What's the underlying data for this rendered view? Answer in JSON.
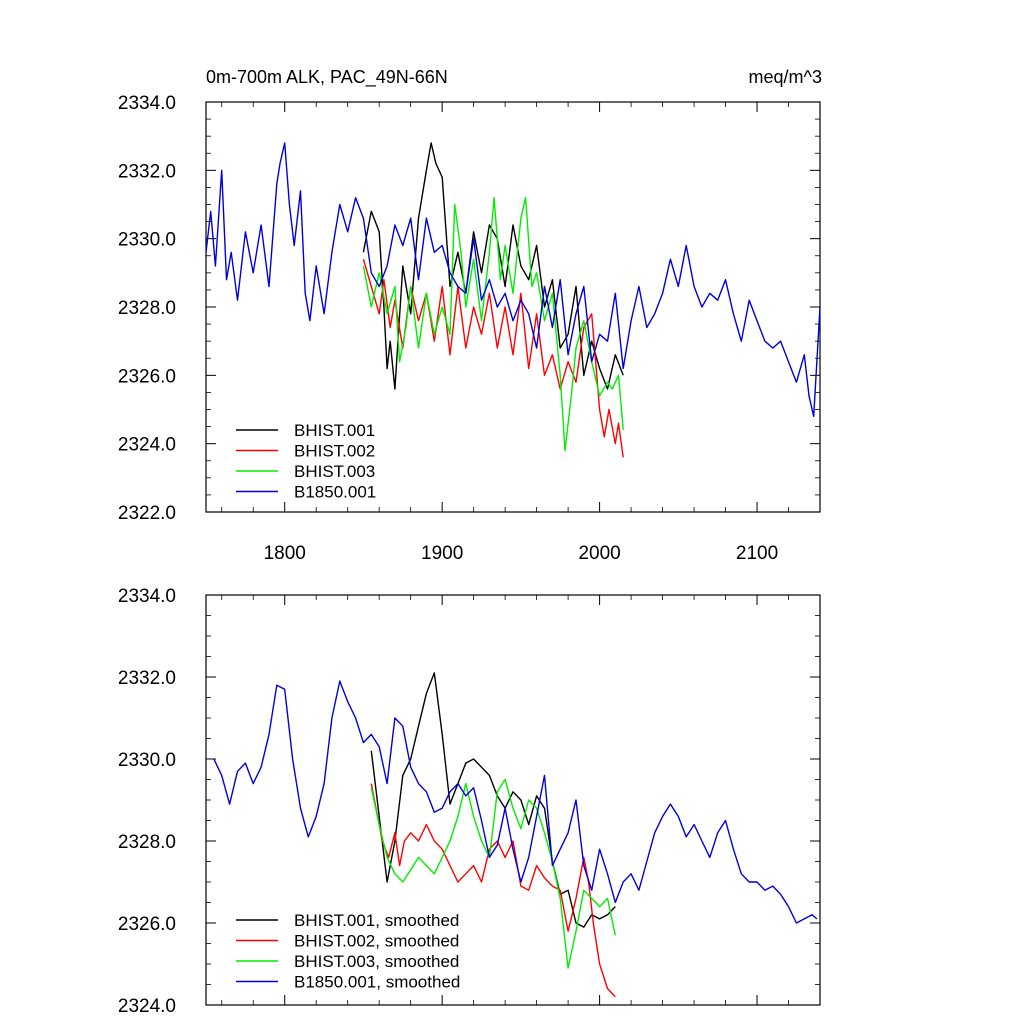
{
  "figure": {
    "title_left": "0m-700m ALK, PAC_49N-66N",
    "title_right": "meq/m^3"
  },
  "colors": {
    "BHIST.001": "#000000",
    "BHIST.002": "#ff0000",
    "BHIST.003": "#00ee00",
    "B1850.001": "#0000dd"
  },
  "chart_data": [
    {
      "type": "line",
      "title": "0m-700m ALK, PAC_49N-66N",
      "units": "meq/m^3",
      "xlim": [
        1750,
        2140
      ],
      "ylim": [
        2322,
        2334
      ],
      "xticks": [
        1800,
        1900,
        2000,
        2100
      ],
      "xtick_labels": [
        "1800",
        "1900",
        "2000",
        "2100"
      ],
      "yticks": [
        2322,
        2324,
        2326,
        2328,
        2330,
        2332,
        2334
      ],
      "ytick_labels": [
        "2322.0",
        "2324.0",
        "2326.0",
        "2328.0",
        "2330.0",
        "2332.0",
        "2334.0"
      ],
      "legend": [
        "BHIST.001",
        "BHIST.002",
        "BHIST.003",
        "B1850.001"
      ],
      "legend_position": "lower-left",
      "series": [
        {
          "name": "BHIST.001",
          "color": "#000000",
          "x": [
            1850,
            1855,
            1860,
            1863,
            1865,
            1867,
            1870,
            1875,
            1880,
            1885,
            1890,
            1893,
            1896,
            1900,
            1905,
            1910,
            1915,
            1920,
            1925,
            1930,
            1935,
            1940,
            1945,
            1950,
            1955,
            1960,
            1965,
            1970,
            1975,
            1980,
            1985,
            1990,
            1995,
            2000,
            2005,
            2010,
            2015
          ],
          "y": [
            2329.6,
            2330.8,
            2330.2,
            2328.0,
            2326.2,
            2327.0,
            2325.6,
            2329.2,
            2327.8,
            2330.6,
            2332.0,
            2332.8,
            2332.2,
            2331.8,
            2328.6,
            2329.6,
            2328.4,
            2330.2,
            2329.0,
            2330.4,
            2330.0,
            2328.6,
            2330.4,
            2329.2,
            2328.8,
            2329.8,
            2328.0,
            2328.8,
            2326.8,
            2327.2,
            2328.6,
            2326.0,
            2327.0,
            2326.2,
            2325.6,
            2326.6,
            2326.0
          ]
        },
        {
          "name": "BHIST.002",
          "color": "#ff0000",
          "x": [
            1850,
            1855,
            1860,
            1863,
            1867,
            1870,
            1875,
            1880,
            1885,
            1890,
            1895,
            1900,
            1905,
            1910,
            1915,
            1920,
            1925,
            1930,
            1935,
            1940,
            1945,
            1950,
            1955,
            1960,
            1965,
            1970,
            1975,
            1980,
            1985,
            1990,
            1995,
            2000,
            2003,
            2006,
            2010,
            2012,
            2015
          ],
          "y": [
            2329.4,
            2328.6,
            2327.8,
            2328.8,
            2327.4,
            2328.2,
            2326.8,
            2328.6,
            2327.6,
            2328.4,
            2327.0,
            2328.6,
            2326.6,
            2328.6,
            2326.8,
            2328.0,
            2327.2,
            2328.4,
            2326.8,
            2328.0,
            2326.6,
            2328.4,
            2326.2,
            2327.8,
            2326.0,
            2326.6,
            2325.6,
            2326.4,
            2325.8,
            2327.4,
            2327.8,
            2325.0,
            2324.2,
            2325.0,
            2324.0,
            2324.6,
            2323.6
          ]
        },
        {
          "name": "BHIST.003",
          "color": "#00ee00",
          "x": [
            1850,
            1855,
            1860,
            1865,
            1870,
            1873,
            1877,
            1880,
            1885,
            1890,
            1895,
            1900,
            1905,
            1908,
            1912,
            1915,
            1920,
            1925,
            1930,
            1933,
            1937,
            1940,
            1945,
            1950,
            1953,
            1957,
            1960,
            1965,
            1970,
            1975,
            1978,
            1982,
            1985,
            1990,
            1995,
            2000,
            2005,
            2008,
            2012,
            2015
          ],
          "y": [
            2329.2,
            2328.0,
            2329.0,
            2327.8,
            2328.6,
            2326.4,
            2327.4,
            2328.6,
            2326.8,
            2328.4,
            2327.2,
            2328.0,
            2327.2,
            2331.0,
            2329.6,
            2328.0,
            2329.4,
            2327.6,
            2329.6,
            2331.2,
            2328.8,
            2329.8,
            2328.4,
            2330.6,
            2331.2,
            2328.6,
            2329.0,
            2327.6,
            2328.4,
            2326.0,
            2323.8,
            2325.4,
            2326.8,
            2327.6,
            2326.4,
            2325.4,
            2325.8,
            2325.6,
            2326.0,
            2324.4
          ]
        },
        {
          "name": "B1850.001",
          "color": "#0000dd",
          "x": [
            1750,
            1753,
            1756,
            1760,
            1763,
            1766,
            1770,
            1775,
            1780,
            1785,
            1790,
            1795,
            1797,
            1800,
            1803,
            1806,
            1810,
            1813,
            1816,
            1820,
            1825,
            1830,
            1835,
            1840,
            1845,
            1850,
            1855,
            1860,
            1865,
            1870,
            1875,
            1880,
            1885,
            1890,
            1895,
            1900,
            1905,
            1910,
            1915,
            1920,
            1925,
            1930,
            1935,
            1940,
            1945,
            1950,
            1955,
            1960,
            1965,
            1970,
            1975,
            1980,
            1985,
            1990,
            1995,
            2000,
            2005,
            2010,
            2015,
            2020,
            2025,
            2030,
            2035,
            2040,
            2045,
            2050,
            2055,
            2060,
            2065,
            2070,
            2075,
            2080,
            2085,
            2090,
            2095,
            2100,
            2105,
            2110,
            2115,
            2120,
            2125,
            2130,
            2133,
            2136,
            2140
          ],
          "y": [
            2329.6,
            2330.8,
            2329.2,
            2332.0,
            2328.8,
            2329.6,
            2328.2,
            2330.2,
            2329.0,
            2330.4,
            2328.6,
            2331.6,
            2332.2,
            2332.8,
            2331.0,
            2329.8,
            2331.4,
            2328.4,
            2327.6,
            2329.2,
            2327.8,
            2329.6,
            2331.0,
            2330.2,
            2331.2,
            2330.6,
            2329.0,
            2328.6,
            2329.2,
            2330.4,
            2329.8,
            2330.6,
            2328.8,
            2330.6,
            2329.6,
            2329.8,
            2329.0,
            2328.6,
            2328.4,
            2330.0,
            2328.2,
            2328.8,
            2328.0,
            2328.4,
            2327.6,
            2328.2,
            2327.8,
            2326.8,
            2328.6,
            2327.4,
            2328.8,
            2326.6,
            2327.8,
            2328.6,
            2326.4,
            2327.2,
            2327.0,
            2328.4,
            2326.2,
            2327.6,
            2328.6,
            2327.4,
            2327.8,
            2328.4,
            2329.4,
            2328.6,
            2329.8,
            2328.6,
            2328.0,
            2328.4,
            2328.2,
            2328.8,
            2327.8,
            2327.0,
            2328.2,
            2327.6,
            2327.0,
            2326.8,
            2327.0,
            2326.4,
            2325.8,
            2326.6,
            2325.4,
            2324.8,
            2328.0
          ]
        }
      ]
    },
    {
      "type": "line",
      "title": "",
      "xlim": [
        1750,
        2140
      ],
      "ylim": [
        2324,
        2334
      ],
      "xticks": [
        1800,
        1900,
        2000,
        2100
      ],
      "xtick_labels": [],
      "yticks": [
        2324,
        2326,
        2328,
        2330,
        2332,
        2334
      ],
      "ytick_labels": [
        "2324.0",
        "2326.0",
        "2328.0",
        "2330.0",
        "2332.0",
        "2334.0"
      ],
      "legend": [
        "BHIST.001, smoothed",
        "BHIST.002, smoothed",
        "BHIST.003, smoothed",
        "B1850.001, smoothed"
      ],
      "legend_position": "lower-left",
      "series": [
        {
          "name": "BHIST.001, smoothed",
          "color": "#000000",
          "x": [
            1855,
            1860,
            1865,
            1870,
            1875,
            1880,
            1885,
            1890,
            1895,
            1900,
            1905,
            1910,
            1915,
            1920,
            1925,
            1930,
            1935,
            1940,
            1945,
            1950,
            1955,
            1960,
            1965,
            1970,
            1975,
            1980,
            1985,
            1990,
            1995,
            2000,
            2005,
            2010
          ],
          "y": [
            2330.2,
            2328.6,
            2327.0,
            2328.0,
            2329.6,
            2330.0,
            2330.8,
            2331.6,
            2332.1,
            2330.6,
            2328.9,
            2329.4,
            2329.9,
            2330.0,
            2329.8,
            2329.6,
            2329.1,
            2328.8,
            2329.2,
            2329.0,
            2328.4,
            2329.1,
            2328.8,
            2327.5,
            2326.7,
            2326.8,
            2326.0,
            2325.9,
            2326.2,
            2326.1,
            2326.2,
            2326.4
          ]
        },
        {
          "name": "BHIST.002, smoothed",
          "color": "#ff0000",
          "x": [
            1855,
            1858,
            1862,
            1866,
            1870,
            1873,
            1876,
            1880,
            1885,
            1890,
            1895,
            1900,
            1905,
            1910,
            1915,
            1920,
            1925,
            1930,
            1935,
            1940,
            1945,
            1950,
            1955,
            1960,
            1965,
            1970,
            1975,
            1980,
            1985,
            1990,
            1993,
            1996,
            2000,
            2005,
            2010
          ],
          "y": [
            2329.4,
            2328.8,
            2328.0,
            2327.6,
            2328.2,
            2327.4,
            2328.0,
            2328.2,
            2328.0,
            2328.4,
            2328.0,
            2327.8,
            2327.4,
            2327.0,
            2327.2,
            2327.4,
            2327.0,
            2327.8,
            2328.0,
            2327.6,
            2328.0,
            2326.9,
            2326.8,
            2327.4,
            2327.1,
            2326.9,
            2326.8,
            2325.8,
            2326.6,
            2327.6,
            2327.0,
            2326.0,
            2325.0,
            2324.4,
            2324.2
          ]
        },
        {
          "name": "BHIST.003, smoothed",
          "color": "#00ee00",
          "x": [
            1855,
            1860,
            1865,
            1870,
            1875,
            1880,
            1885,
            1890,
            1895,
            1900,
            1905,
            1910,
            1915,
            1920,
            1925,
            1930,
            1935,
            1940,
            1945,
            1950,
            1955,
            1960,
            1965,
            1970,
            1975,
            1980,
            1985,
            1990,
            1995,
            2000,
            2005,
            2010
          ],
          "y": [
            2329.3,
            2328.4,
            2327.6,
            2327.2,
            2327.0,
            2327.3,
            2327.6,
            2327.4,
            2327.2,
            2327.6,
            2328.0,
            2328.6,
            2329.4,
            2328.6,
            2328.0,
            2327.6,
            2329.2,
            2329.5,
            2328.8,
            2328.3,
            2329.0,
            2328.8,
            2328.2,
            2327.5,
            2326.6,
            2324.9,
            2325.8,
            2326.8,
            2326.6,
            2326.4,
            2326.6,
            2325.7
          ]
        },
        {
          "name": "B1850.001, smoothed",
          "color": "#0000dd",
          "x": [
            1755,
            1760,
            1765,
            1770,
            1775,
            1780,
            1785,
            1790,
            1795,
            1800,
            1805,
            1810,
            1815,
            1820,
            1825,
            1830,
            1835,
            1840,
            1845,
            1850,
            1855,
            1860,
            1865,
            1870,
            1875,
            1880,
            1885,
            1890,
            1895,
            1900,
            1905,
            1910,
            1915,
            1920,
            1925,
            1930,
            1935,
            1940,
            1945,
            1950,
            1955,
            1960,
            1965,
            1970,
            1975,
            1980,
            1985,
            1990,
            1995,
            2000,
            2005,
            2010,
            2015,
            2020,
            2025,
            2030,
            2035,
            2040,
            2045,
            2050,
            2055,
            2060,
            2065,
            2070,
            2075,
            2080,
            2085,
            2090,
            2095,
            2100,
            2105,
            2110,
            2115,
            2120,
            2125,
            2130,
            2135,
            2138
          ],
          "y": [
            2330.0,
            2329.6,
            2328.9,
            2329.7,
            2329.9,
            2329.4,
            2329.8,
            2330.6,
            2331.8,
            2331.7,
            2330.0,
            2328.8,
            2328.1,
            2328.6,
            2329.4,
            2331.0,
            2331.9,
            2331.4,
            2331.0,
            2330.4,
            2330.6,
            2330.3,
            2329.4,
            2331.0,
            2330.8,
            2329.8,
            2329.4,
            2329.2,
            2328.7,
            2328.8,
            2329.2,
            2329.4,
            2329.1,
            2329.3,
            2328.5,
            2327.6,
            2327.9,
            2328.8,
            2327.8,
            2327.0,
            2327.6,
            2328.6,
            2329.6,
            2327.4,
            2327.8,
            2328.2,
            2329.0,
            2327.4,
            2326.8,
            2327.8,
            2327.2,
            2326.5,
            2327.0,
            2327.2,
            2326.8,
            2327.5,
            2328.2,
            2328.6,
            2328.9,
            2328.6,
            2328.1,
            2328.4,
            2328.0,
            2327.6,
            2328.2,
            2328.5,
            2327.8,
            2327.2,
            2327.0,
            2327.0,
            2326.8,
            2326.9,
            2326.7,
            2326.4,
            2326.0,
            2326.1,
            2326.2,
            2326.1
          ]
        }
      ]
    }
  ]
}
